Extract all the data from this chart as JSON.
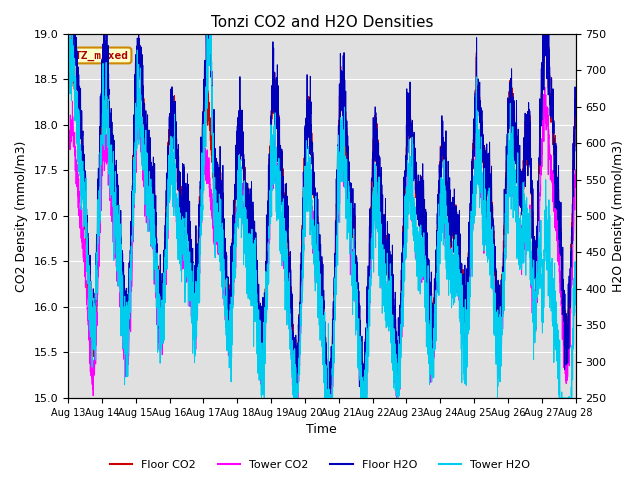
{
  "title": "Tonzi CO2 and H2O Densities",
  "xlabel": "Time",
  "ylabel_left": "CO2 Density (mmol/m3)",
  "ylabel_right": "H2O Density (mmol/m3)",
  "ylim_left": [
    15.0,
    19.0
  ],
  "ylim_right": [
    250,
    750
  ],
  "yticks_left": [
    15.0,
    15.5,
    16.0,
    16.5,
    17.0,
    17.5,
    18.0,
    18.5,
    19.0
  ],
  "yticks_right": [
    250,
    300,
    350,
    400,
    450,
    500,
    550,
    600,
    650,
    700,
    750
  ],
  "x_tick_days": [
    13,
    14,
    15,
    16,
    17,
    18,
    19,
    20,
    21,
    22,
    23,
    24,
    25,
    26,
    27,
    28
  ],
  "n_points": 3600,
  "color_floor_co2": "#cc0000",
  "color_tower_co2": "#ff00ff",
  "color_floor_h2o": "#0000bb",
  "color_tower_h2o": "#00ccee",
  "label_floor_co2": "Floor CO2",
  "label_tower_co2": "Tower CO2",
  "label_floor_h2o": "Floor H2O",
  "label_tower_h2o": "Tower H2O",
  "annotation_text": "TZ_mixed",
  "annotation_color": "#aa0000",
  "annotation_bg": "#ffffcc",
  "annotation_edge": "#cc8800",
  "background_color": "#e0e0e0",
  "linewidth": 0.7,
  "figsize": [
    6.4,
    4.8
  ],
  "dpi": 100
}
